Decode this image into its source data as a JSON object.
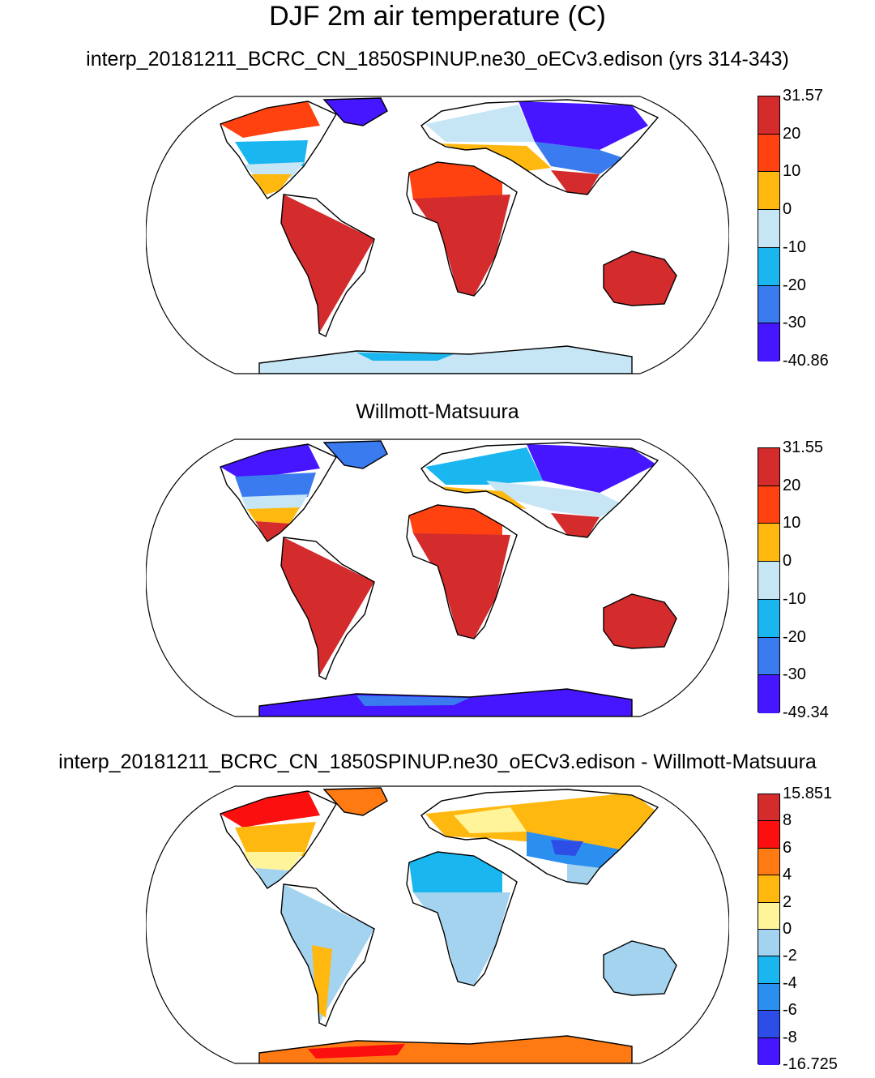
{
  "page": {
    "title": "DJF 2m air temperature (C)"
  },
  "colors": {
    "temp": [
      "#4516ff",
      "#3a7bef",
      "#19b6ef",
      "#c6e6f6",
      "#ffb80f",
      "#ff4210",
      "#d42b2d"
    ],
    "diff": [
      "#4516ff",
      "#2c4ee6",
      "#2b8ff0",
      "#19b6ef",
      "#a3d3ef",
      "#fff49a",
      "#ffb80f",
      "#ff7a13",
      "#fb0f0f",
      "#d42b2d"
    ],
    "coastline": "#000000"
  },
  "panels": [
    {
      "title": "interp_20181211_BCRC_CN_1850SPINUP.ne30_oECv3.edison (yrs 314-343)",
      "colorbar_labels": [
        "31.57",
        "20",
        "10",
        "0",
        "-10",
        "-20",
        "-30",
        "-40.86"
      ]
    },
    {
      "title": "Willmott-Matsuura",
      "colorbar_labels": [
        "31.55",
        "20",
        "10",
        "0",
        "-10",
        "-20",
        "-30",
        "-49.34"
      ]
    },
    {
      "title": "interp_20181211_BCRC_CN_1850SPINUP.ne30_oECv3.edison - Willmott-Matsuura",
      "colorbar_labels": [
        "15.851",
        "8",
        "6",
        "4",
        "2",
        "0",
        "-2",
        "-4",
        "-6",
        "-8",
        "-16.725"
      ]
    }
  ],
  "chart_data": [
    {
      "type": "heatmap",
      "title": "interp_20181211_BCRC_CN_1850SPINUP.ne30_oECv3.edison (yrs 314-343)",
      "projection": "Robinson world map",
      "variable": "DJF 2m air temperature (C)",
      "colorbar": {
        "min": -40.86,
        "max": 31.57,
        "levels": [
          -30,
          -20,
          -10,
          0,
          10,
          20
        ]
      },
      "regions": [
        {
          "region": "Greenland / Arctic Canada",
          "class": -40
        },
        {
          "region": "Siberia",
          "class": -40
        },
        {
          "region": "Canada",
          "class": -20
        },
        {
          "region": "Northern Europe / Russia",
          "class": -10
        },
        {
          "region": "Central Asia",
          "class": -10
        },
        {
          "region": "Southern USA / Mediterranean",
          "class": 5
        },
        {
          "region": "North Africa",
          "class": 15
        },
        {
          "region": "Tropics / South America / Africa / Australia",
          "class": 25
        },
        {
          "region": "Antarctic coast",
          "class": -10
        }
      ]
    },
    {
      "type": "heatmap",
      "title": "Willmott-Matsuura",
      "projection": "Robinson world map",
      "variable": "DJF 2m air temperature (C)",
      "colorbar": {
        "min": -49.34,
        "max": 31.55,
        "levels": [
          -30,
          -20,
          -10,
          0,
          10,
          20
        ]
      },
      "regions": [
        {
          "region": "Greenland / Arctic Canada",
          "class": -40
        },
        {
          "region": "Siberia",
          "class": -40
        },
        {
          "region": "Canada",
          "class": -25
        },
        {
          "region": "Northern Europe / Russia",
          "class": -15
        },
        {
          "region": "Central Asia",
          "class": -10
        },
        {
          "region": "Southern USA / Mediterranean",
          "class": 5
        },
        {
          "region": "North Africa",
          "class": 15
        },
        {
          "region": "Tropics / South America / Africa / Australia",
          "class": 25
        },
        {
          "region": "Antarctica",
          "class": -40
        }
      ]
    },
    {
      "type": "heatmap",
      "title": "interp_20181211_BCRC_CN_1850SPINUP.ne30_oECv3.edison - Willmott-Matsuura",
      "projection": "Robinson world map",
      "variable": "DJF 2m air temperature (C)",
      "colorbar": {
        "min": -16.725,
        "max": 15.851,
        "levels": [
          -8,
          -6,
          -4,
          -2,
          0,
          2,
          4,
          6,
          8
        ]
      },
      "regions": [
        {
          "region": "Alaska / Northern Canada",
          "class": 8
        },
        {
          "region": "Greenland",
          "class": 6
        },
        {
          "region": "USA",
          "class": 1
        },
        {
          "region": "Central America",
          "class": -1
        },
        {
          "region": "South America",
          "class": -1
        },
        {
          "region": "Andes",
          "class": 4
        },
        {
          "region": "Europe",
          "class": 1
        },
        {
          "region": "Siberia",
          "class": 3
        },
        {
          "region": "North Africa / Middle East",
          "class": -3
        },
        {
          "region": "Central Asia / Tibet",
          "class": -6
        },
        {
          "region": "Southern Africa",
          "class": -1
        },
        {
          "region": "Australia",
          "class": -1
        },
        {
          "region": "Antarctica",
          "class": 6
        }
      ]
    }
  ]
}
